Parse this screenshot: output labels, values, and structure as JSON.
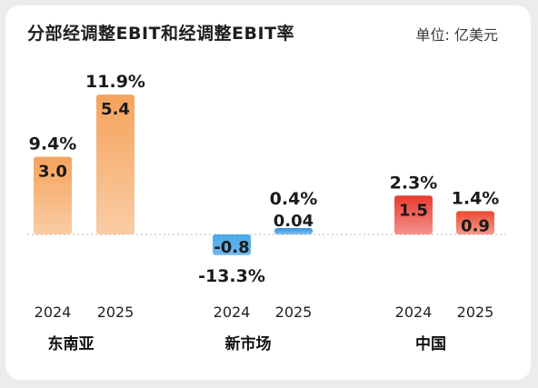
{
  "chart_data": {
    "type": "bar",
    "title": "分部经调整EBIT和经调整EBIT率",
    "unit": "单位: 亿美元",
    "groups": [
      {
        "category": "东南亚",
        "bars": [
          {
            "year": "2024",
            "value": 3.0,
            "value_label": "3.0",
            "margin_label": "9.4%",
            "color": "#f5a35c"
          },
          {
            "year": "2025",
            "value": 5.4,
            "value_label": "5.4",
            "margin_label": "11.9%",
            "color": "#f5a35c"
          }
        ]
      },
      {
        "category": "新市场",
        "bars": [
          {
            "year": "2024",
            "value": -0.8,
            "value_label": "-0.8",
            "margin_label": "-13.3%",
            "color": "#4aa8e8"
          },
          {
            "year": "2025",
            "value": 0.04,
            "value_label": "0.04",
            "margin_label": "0.4%",
            "color": "#2b8fe0"
          }
        ]
      },
      {
        "category": "中国",
        "bars": [
          {
            "year": "2024",
            "value": 1.5,
            "value_label": "1.5",
            "margin_label": "2.3%",
            "color": "#ea3a2f"
          },
          {
            "year": "2025",
            "value": 0.9,
            "value_label": "0.9",
            "margin_label": "1.4%",
            "color": "#ea4a30"
          }
        ]
      }
    ]
  }
}
